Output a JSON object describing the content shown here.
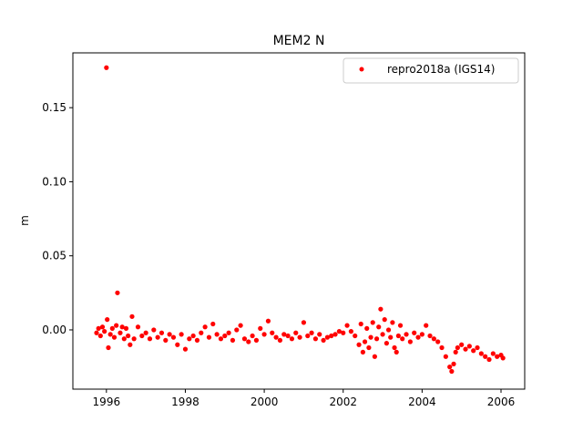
{
  "chart_data": {
    "type": "scatter",
    "title": "MEM2 N",
    "xlabel": "",
    "ylabel": "m",
    "xlim": [
      1995.15,
      2006.6
    ],
    "ylim": [
      -0.04,
      0.187
    ],
    "xticks": [
      1996,
      1998,
      2000,
      2002,
      2004,
      2006
    ],
    "xtick_labels": [
      "1996",
      "1998",
      "2000",
      "2002",
      "2004",
      "2006"
    ],
    "yticks": [
      0.0,
      0.05,
      0.1,
      0.15
    ],
    "ytick_labels": [
      "0.00",
      "0.05",
      "0.10",
      "0.15"
    ],
    "grid": false,
    "legend_position": "top-right",
    "series": [
      {
        "name": "repro2018a (IGS14)",
        "color": "#ff0000",
        "marker": "circle",
        "points": [
          [
            1995.75,
            -0.002
          ],
          [
            1995.8,
            0.001
          ],
          [
            1995.85,
            -0.004
          ],
          [
            1995.9,
            0.002
          ],
          [
            1995.95,
            -0.001
          ],
          [
            1996.0,
            0.177
          ],
          [
            1996.02,
            0.007
          ],
          [
            1996.05,
            -0.012
          ],
          [
            1996.1,
            -0.003
          ],
          [
            1996.15,
            0.001
          ],
          [
            1996.2,
            -0.005
          ],
          [
            1996.25,
            0.003
          ],
          [
            1996.28,
            0.025
          ],
          [
            1996.35,
            -0.002
          ],
          [
            1996.4,
            0.002
          ],
          [
            1996.45,
            -0.006
          ],
          [
            1996.5,
            0.001
          ],
          [
            1996.55,
            -0.004
          ],
          [
            1996.6,
            -0.01
          ],
          [
            1996.65,
            0.009
          ],
          [
            1996.7,
            -0.006
          ],
          [
            1996.8,
            0.002
          ],
          [
            1996.9,
            -0.004
          ],
          [
            1997.0,
            -0.002
          ],
          [
            1997.1,
            -0.006
          ],
          [
            1997.2,
            0.0
          ],
          [
            1997.3,
            -0.005
          ],
          [
            1997.4,
            -0.002
          ],
          [
            1997.5,
            -0.007
          ],
          [
            1997.6,
            -0.003
          ],
          [
            1997.7,
            -0.005
          ],
          [
            1997.8,
            -0.01
          ],
          [
            1997.9,
            -0.003
          ],
          [
            1998.0,
            -0.013
          ],
          [
            1998.1,
            -0.006
          ],
          [
            1998.2,
            -0.004
          ],
          [
            1998.3,
            -0.007
          ],
          [
            1998.4,
            -0.002
          ],
          [
            1998.5,
            0.002
          ],
          [
            1998.6,
            -0.005
          ],
          [
            1998.7,
            0.004
          ],
          [
            1998.8,
            -0.003
          ],
          [
            1998.9,
            -0.006
          ],
          [
            1999.0,
            -0.004
          ],
          [
            1999.1,
            -0.002
          ],
          [
            1999.2,
            -0.007
          ],
          [
            1999.3,
            0.0
          ],
          [
            1999.4,
            0.003
          ],
          [
            1999.5,
            -0.006
          ],
          [
            1999.6,
            -0.008
          ],
          [
            1999.7,
            -0.004
          ],
          [
            1999.8,
            -0.007
          ],
          [
            1999.9,
            0.001
          ],
          [
            2000.0,
            -0.003
          ],
          [
            2000.1,
            0.006
          ],
          [
            2000.2,
            -0.002
          ],
          [
            2000.3,
            -0.005
          ],
          [
            2000.4,
            -0.007
          ],
          [
            2000.5,
            -0.003
          ],
          [
            2000.6,
            -0.004
          ],
          [
            2000.7,
            -0.006
          ],
          [
            2000.8,
            -0.002
          ],
          [
            2000.9,
            -0.005
          ],
          [
            2001.0,
            0.005
          ],
          [
            2001.1,
            -0.004
          ],
          [
            2001.2,
            -0.002
          ],
          [
            2001.3,
            -0.006
          ],
          [
            2001.4,
            -0.003
          ],
          [
            2001.5,
            -0.007
          ],
          [
            2001.6,
            -0.005
          ],
          [
            2001.7,
            -0.004
          ],
          [
            2001.8,
            -0.003
          ],
          [
            2001.9,
            -0.001
          ],
          [
            2002.0,
            -0.002
          ],
          [
            2002.1,
            0.003
          ],
          [
            2002.2,
            -0.001
          ],
          [
            2002.3,
            -0.004
          ],
          [
            2002.4,
            -0.01
          ],
          [
            2002.45,
            0.004
          ],
          [
            2002.5,
            -0.015
          ],
          [
            2002.55,
            -0.008
          ],
          [
            2002.6,
            0.001
          ],
          [
            2002.65,
            -0.012
          ],
          [
            2002.7,
            -0.005
          ],
          [
            2002.75,
            0.005
          ],
          [
            2002.8,
            -0.018
          ],
          [
            2002.85,
            -0.006
          ],
          [
            2002.9,
            0.002
          ],
          [
            2002.95,
            0.014
          ],
          [
            2003.0,
            -0.003
          ],
          [
            2003.05,
            0.007
          ],
          [
            2003.1,
            -0.009
          ],
          [
            2003.15,
            0.0
          ],
          [
            2003.2,
            -0.005
          ],
          [
            2003.25,
            0.005
          ],
          [
            2003.3,
            -0.012
          ],
          [
            2003.35,
            -0.015
          ],
          [
            2003.4,
            -0.004
          ],
          [
            2003.45,
            0.003
          ],
          [
            2003.5,
            -0.006
          ],
          [
            2003.6,
            -0.003
          ],
          [
            2003.7,
            -0.008
          ],
          [
            2003.8,
            -0.002
          ],
          [
            2003.9,
            -0.005
          ],
          [
            2004.0,
            -0.003
          ],
          [
            2004.1,
            0.003
          ],
          [
            2004.2,
            -0.004
          ],
          [
            2004.3,
            -0.006
          ],
          [
            2004.4,
            -0.008
          ],
          [
            2004.5,
            -0.012
          ],
          [
            2004.6,
            -0.018
          ],
          [
            2004.7,
            -0.025
          ],
          [
            2004.75,
            -0.028
          ],
          [
            2004.8,
            -0.023
          ],
          [
            2004.85,
            -0.015
          ],
          [
            2004.9,
            -0.012
          ],
          [
            2005.0,
            -0.01
          ],
          [
            2005.1,
            -0.013
          ],
          [
            2005.2,
            -0.011
          ],
          [
            2005.3,
            -0.014
          ],
          [
            2005.4,
            -0.012
          ],
          [
            2005.5,
            -0.016
          ],
          [
            2005.6,
            -0.018
          ],
          [
            2005.7,
            -0.02
          ],
          [
            2005.8,
            -0.016
          ],
          [
            2005.9,
            -0.018
          ],
          [
            2006.0,
            -0.017
          ],
          [
            2006.05,
            -0.019
          ]
        ]
      }
    ]
  }
}
